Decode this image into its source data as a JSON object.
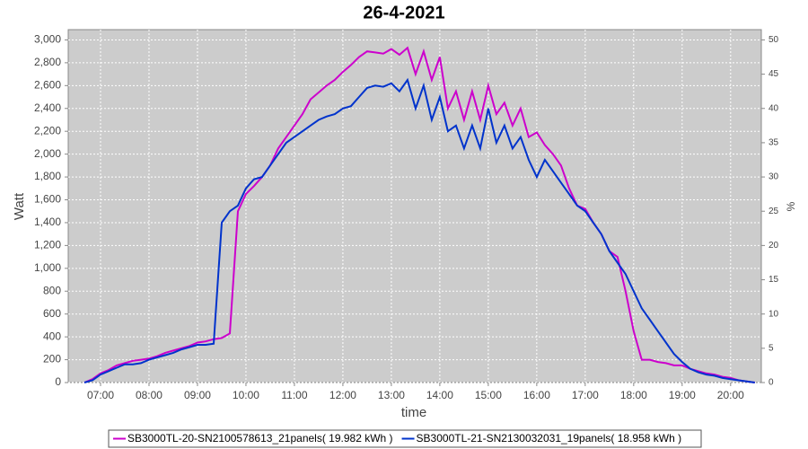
{
  "chart_data": {
    "type": "line",
    "title": "26-4-2021",
    "x_label": "time",
    "y_label": "Watt",
    "y2_label": "%",
    "x": [
      400,
      410,
      420,
      430,
      440,
      450,
      460,
      470,
      480,
      490,
      500,
      510,
      520,
      530,
      540,
      550,
      560,
      570,
      580,
      590,
      600,
      610,
      620,
      630,
      640,
      650,
      660,
      670,
      680,
      690,
      700,
      710,
      720,
      730,
      740,
      750,
      760,
      770,
      780,
      790,
      800,
      810,
      820,
      830,
      840,
      850,
      860,
      870,
      880,
      890,
      900,
      910,
      920,
      930,
      940,
      950,
      960,
      970,
      980,
      990,
      1000,
      1010,
      1020,
      1030,
      1040,
      1050,
      1060,
      1070,
      1080,
      1090,
      1100,
      1110,
      1120,
      1130,
      1140,
      1150,
      1160,
      1170,
      1180,
      1190,
      1200,
      1210,
      1220,
      1230
    ],
    "xlim": [
      380,
      1238
    ],
    "xticks": [
      {
        "value": 420,
        "label": "07:00"
      },
      {
        "value": 480,
        "label": "08:00"
      },
      {
        "value": 540,
        "label": "09:00"
      },
      {
        "value": 600,
        "label": "10:00"
      },
      {
        "value": 660,
        "label": "11:00"
      },
      {
        "value": 720,
        "label": "12:00"
      },
      {
        "value": 780,
        "label": "13:00"
      },
      {
        "value": 840,
        "label": "14:00"
      },
      {
        "value": 900,
        "label": "15:00"
      },
      {
        "value": 960,
        "label": "16:00"
      },
      {
        "value": 1020,
        "label": "17:00"
      },
      {
        "value": 1080,
        "label": "18:00"
      },
      {
        "value": 1140,
        "label": "19:00"
      },
      {
        "value": 1200,
        "label": "20:00"
      }
    ],
    "ylim": [
      0,
      3090
    ],
    "yticks": [
      0,
      200,
      400,
      600,
      800,
      {
        "value": 1000,
        "label": "1,000"
      },
      {
        "value": 1200,
        "label": "1,200"
      },
      {
        "value": 1400,
        "label": "1,400"
      },
      {
        "value": 1600,
        "label": "1,600"
      },
      {
        "value": 1800,
        "label": "1,800"
      },
      {
        "value": 2000,
        "label": "2,000"
      },
      {
        "value": 2200,
        "label": "2,200"
      },
      {
        "value": 2400,
        "label": "2,400"
      },
      {
        "value": 2600,
        "label": "2,600"
      },
      {
        "value": 2800,
        "label": "2,800"
      },
      {
        "value": 3000,
        "label": "3,000"
      }
    ],
    "y2lim": [
      0,
      51.5
    ],
    "y2ticks": [
      0,
      5,
      10,
      15,
      20,
      25,
      30,
      35,
      40,
      45,
      50
    ],
    "grid": true,
    "series": [
      {
        "name": "SB3000TL-20-SN2100578613_21panels( 19.982 kWh )",
        "color": "#cc00cc",
        "values": [
          0,
          30,
          80,
          110,
          150,
          170,
          190,
          200,
          210,
          230,
          260,
          280,
          300,
          320,
          350,
          360,
          380,
          390,
          430,
          1500,
          1650,
          1720,
          1800,
          1900,
          2050,
          2150,
          2250,
          2350,
          2480,
          2540,
          2600,
          2650,
          2720,
          2780,
          2850,
          2900,
          2890,
          2880,
          2920,
          2870,
          2930,
          2700,
          2900,
          2650,
          2850,
          2400,
          2550,
          2300,
          2550,
          2300,
          2600,
          2350,
          2450,
          2250,
          2400,
          2150,
          2190,
          2080,
          2000,
          1900,
          1700,
          1550,
          1520,
          1400,
          1300,
          1150,
          1100,
          800,
          450,
          200,
          200,
          180,
          170,
          150,
          150,
          120,
          100,
          80,
          70,
          50,
          40,
          20,
          10,
          0
        ]
      },
      {
        "name": "SB3000TL-21-SN2130032031_19panels( 18.958 kWh )",
        "color": "#0033cc",
        "values": [
          0,
          20,
          70,
          100,
          130,
          160,
          160,
          170,
          200,
          220,
          240,
          260,
          290,
          310,
          330,
          330,
          340,
          1400,
          1500,
          1550,
          1700,
          1780,
          1800,
          1900,
          2000,
          2100,
          2150,
          2200,
          2250,
          2300,
          2330,
          2350,
          2400,
          2420,
          2500,
          2580,
          2600,
          2590,
          2620,
          2550,
          2650,
          2400,
          2600,
          2300,
          2500,
          2200,
          2250,
          2050,
          2250,
          2050,
          2400,
          2100,
          2250,
          2050,
          2150,
          1950,
          1800,
          1950,
          1850,
          1750,
          1650,
          1550,
          1500,
          1400,
          1300,
          1150,
          1050,
          950,
          800,
          650,
          550,
          450,
          350,
          250,
          180,
          120,
          90,
          70,
          60,
          40,
          30,
          20,
          10,
          0
        ]
      }
    ]
  }
}
